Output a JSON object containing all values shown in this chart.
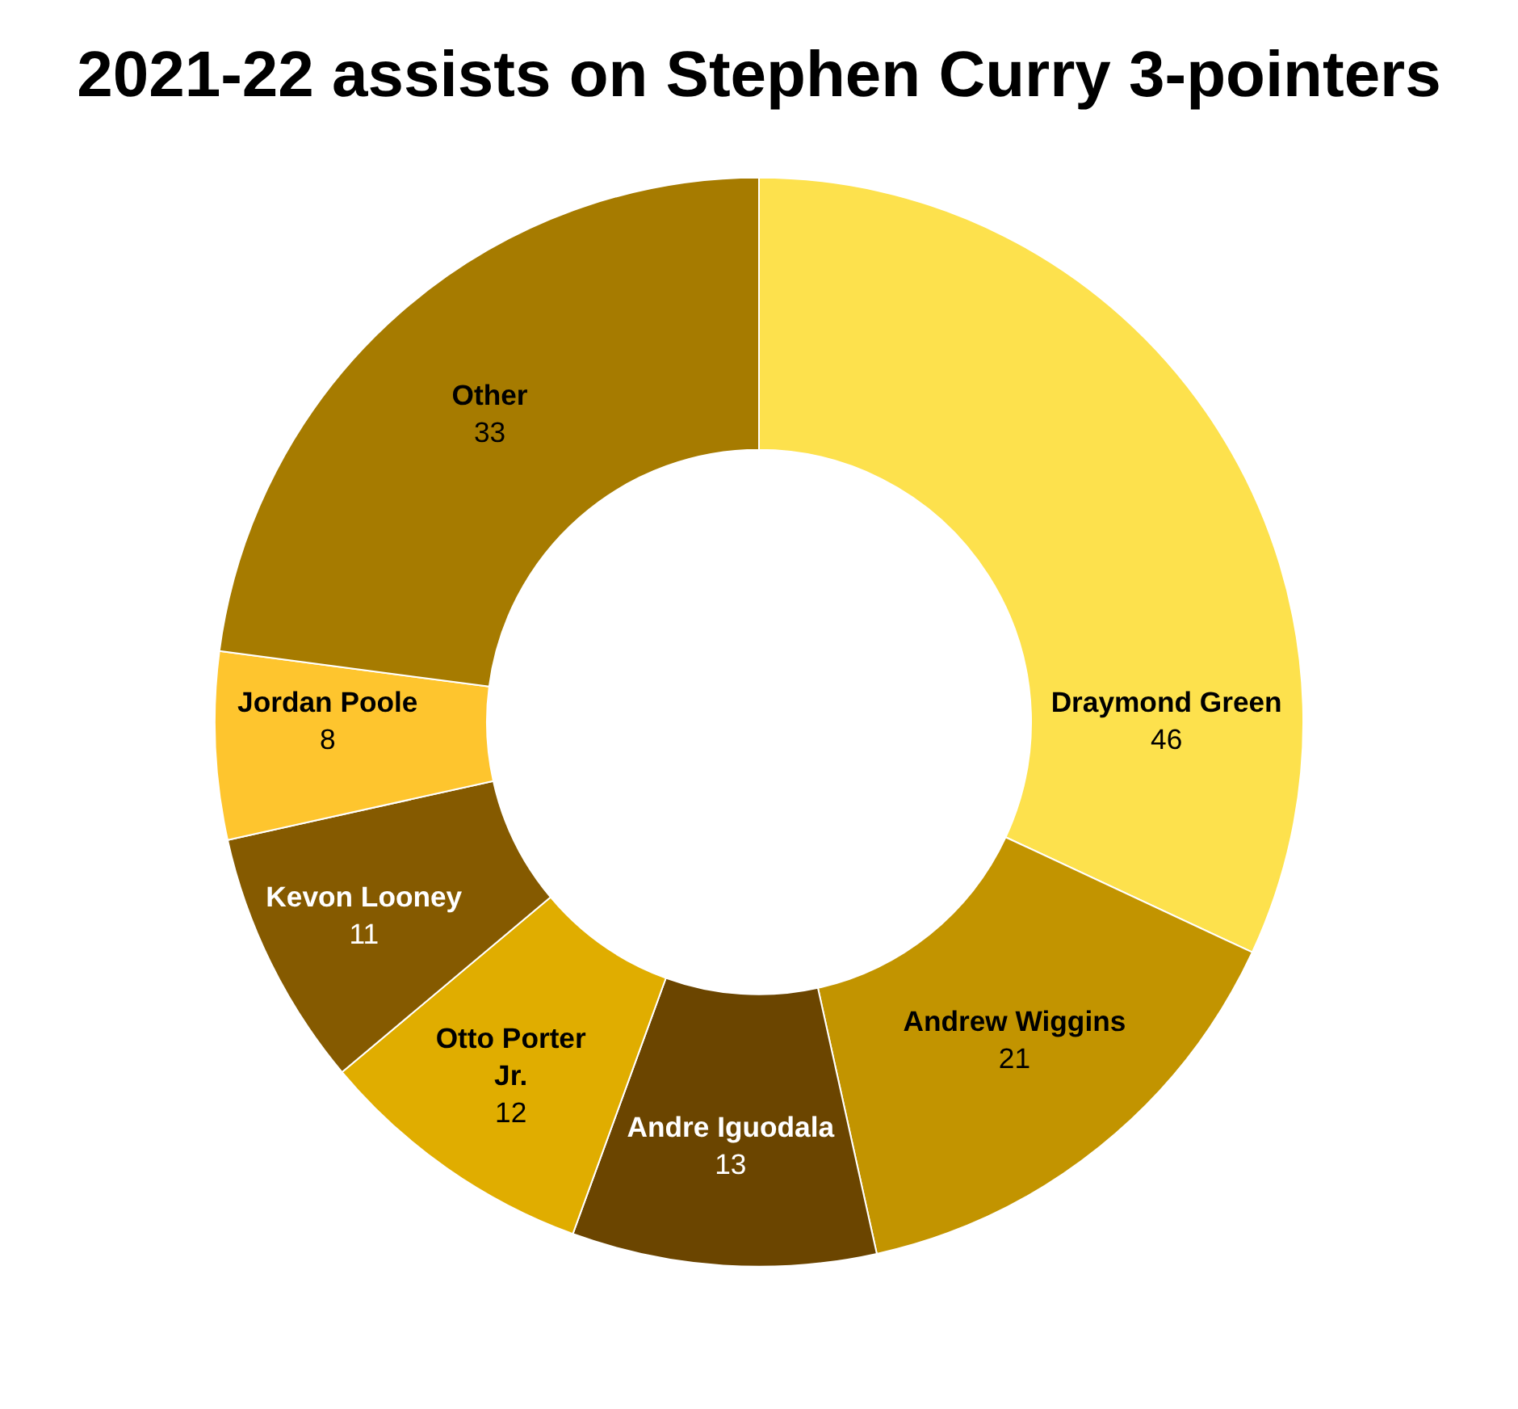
{
  "chart_data": {
    "type": "donut",
    "title": "2021-22 assists on Stephen Curry 3-pointers",
    "categories": [
      "Draymond Green",
      "Andrew Wiggins",
      "Andre Iguodala",
      "Otto Porter Jr.",
      "Kevon Looney",
      "Jordan Poole",
      "Other"
    ],
    "values": [
      46,
      21,
      13,
      12,
      11,
      8,
      33
    ],
    "colors": [
      "#fde14d",
      "#c29400",
      "#6b4500",
      "#e0ad00",
      "#855a00",
      "#fec52e",
      "#a67b00"
    ],
    "data_labels": true,
    "legend": false
  }
}
